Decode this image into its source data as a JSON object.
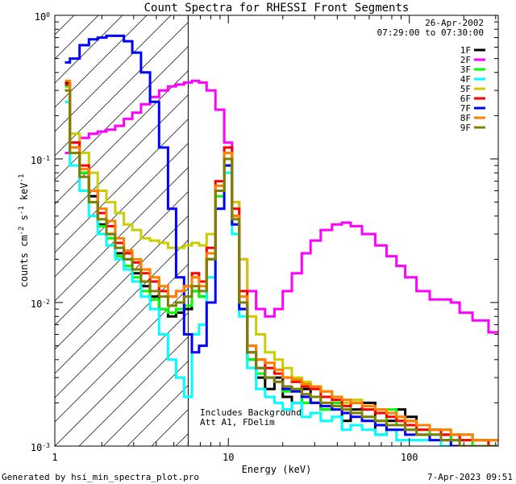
{
  "chart_data": {
    "type": "line",
    "title": "Count Spectra for RHESSI Front Segments",
    "xlabel": "Energy (keV)",
    "ylabel": "counts cm-2 s-1 keV-1",
    "x_scale": "log",
    "y_scale": "log",
    "xlim": [
      1.1,
      310
    ],
    "ylim": [
      0.001,
      1.0
    ],
    "x_ticks": [
      {
        "value": 1,
        "label": "1"
      },
      {
        "value": 10,
        "label": "10"
      },
      {
        "value": 100,
        "label": "100"
      }
    ],
    "y_ticks": [
      {
        "value": 1.0,
        "base": "10",
        "exp": "0"
      },
      {
        "value": 0.1,
        "base": "10",
        "exp": "-1"
      },
      {
        "value": 0.01,
        "base": "10",
        "exp": "-2"
      },
      {
        "value": 0.001,
        "base": "10",
        "exp": "-3"
      }
    ],
    "date": "26-Apr-2002",
    "time_range": "07:29:00 to 07:30:00",
    "annotations": [
      "Includes Background",
      "Att A1, FDelim"
    ],
    "hatched_region_max_kev": 6.0,
    "series": [
      {
        "name": "1F",
        "color": "#000000",
        "x": [
          1.25,
          1.42,
          1.6,
          1.8,
          2.0,
          2.25,
          2.5,
          2.8,
          3.1,
          3.5,
          3.9,
          4.4,
          4.9,
          5.4,
          6.0,
          6.6,
          7.2,
          8.0,
          9.0,
          10.0,
          11.0,
          12.0,
          13.5,
          15,
          17,
          19,
          21,
          24,
          27,
          30,
          35,
          40,
          45,
          50,
          60,
          70,
          80,
          90,
          100,
          120,
          140,
          160,
          180,
          200,
          250,
          300
        ],
        "y": [
          0.34,
          0.12,
          0.08,
          0.055,
          0.035,
          0.03,
          0.022,
          0.02,
          0.016,
          0.013,
          0.011,
          0.009,
          0.008,
          0.0085,
          0.009,
          0.012,
          0.011,
          0.02,
          0.06,
          0.1,
          0.04,
          0.01,
          0.004,
          0.003,
          0.0025,
          0.003,
          0.0022,
          0.002,
          0.0025,
          0.002,
          0.0018,
          0.002,
          0.0015,
          0.0018,
          0.002,
          0.0012,
          0.0015,
          0.0018,
          0.0016,
          0.0014,
          0.0012,
          0.0012,
          0.0011,
          0.0012,
          0.0011,
          0.001
        ]
      },
      {
        "name": "2F",
        "color": "#ff00ff",
        "x": [
          1.25,
          1.42,
          1.6,
          1.8,
          2.0,
          2.25,
          2.5,
          2.8,
          3.1,
          3.5,
          3.9,
          4.4,
          4.9,
          5.4,
          6.0,
          6.6,
          7.2,
          8.0,
          9.0,
          10.0,
          11.0,
          12.0,
          13.5,
          15,
          17,
          19,
          21,
          24,
          27,
          30,
          35,
          40,
          45,
          50,
          60,
          70,
          80,
          90,
          100,
          120,
          140,
          160,
          180,
          200,
          250,
          300
        ],
        "y": [
          0.11,
          0.13,
          0.14,
          0.15,
          0.155,
          0.16,
          0.17,
          0.19,
          0.21,
          0.24,
          0.27,
          0.3,
          0.32,
          0.33,
          0.34,
          0.35,
          0.34,
          0.3,
          0.22,
          0.13,
          0.05,
          0.02,
          0.012,
          0.009,
          0.008,
          0.009,
          0.012,
          0.016,
          0.022,
          0.027,
          0.032,
          0.035,
          0.036,
          0.034,
          0.03,
          0.025,
          0.021,
          0.018,
          0.015,
          0.012,
          0.0105,
          0.0105,
          0.01,
          0.0085,
          0.0075,
          0.0062
        ]
      },
      {
        "name": "3F",
        "color": "#00ff00",
        "x": [
          1.25,
          1.42,
          1.6,
          1.8,
          2.0,
          2.25,
          2.5,
          2.8,
          3.1,
          3.5,
          3.9,
          4.4,
          4.9,
          5.4,
          6.0,
          6.6,
          7.2,
          8.0,
          9.0,
          10.0,
          11.0,
          12.0,
          13.5,
          15,
          17,
          19,
          21,
          24,
          27,
          30,
          35,
          40,
          45,
          50,
          60,
          70,
          80,
          90,
          100,
          120,
          140,
          160,
          180,
          200,
          250,
          300
        ],
        "y": [
          0.32,
          0.12,
          0.08,
          0.05,
          0.034,
          0.028,
          0.021,
          0.018,
          0.015,
          0.012,
          0.0105,
          0.009,
          0.0085,
          0.009,
          0.0095,
          0.012,
          0.011,
          0.02,
          0.055,
          0.09,
          0.035,
          0.009,
          0.004,
          0.0032,
          0.003,
          0.0028,
          0.0024,
          0.0025,
          0.002,
          0.0022,
          0.0018,
          0.002,
          0.0017,
          0.002,
          0.0016,
          0.0015,
          0.0018,
          0.0014,
          0.0013,
          0.0013,
          0.0012,
          0.0011,
          0.0012,
          0.0011,
          0.001,
          0.001
        ]
      },
      {
        "name": "4F",
        "color": "#00ffff",
        "x": [
          1.25,
          1.42,
          1.6,
          1.8,
          2.0,
          2.25,
          2.5,
          2.8,
          3.1,
          3.5,
          3.9,
          4.4,
          4.9,
          5.4,
          6.0,
          6.6,
          7.2,
          8.0,
          9.0,
          10.0,
          11.0,
          12.0,
          13.5,
          15,
          17,
          19,
          21,
          24,
          27,
          30,
          35,
          40,
          45,
          50,
          60,
          70,
          80,
          90,
          100,
          120,
          140,
          160,
          180,
          200,
          250,
          300
        ],
        "y": [
          0.25,
          0.09,
          0.06,
          0.04,
          0.03,
          0.025,
          0.02,
          0.017,
          0.014,
          0.011,
          0.009,
          0.006,
          0.004,
          0.003,
          0.0022,
          0.006,
          0.007,
          0.015,
          0.045,
          0.08,
          0.03,
          0.008,
          0.0035,
          0.0025,
          0.0022,
          0.002,
          0.0018,
          0.002,
          0.0016,
          0.0017,
          0.0015,
          0.0016,
          0.0013,
          0.0014,
          0.0013,
          0.0012,
          0.0013,
          0.0011,
          0.0011,
          0.0011,
          0.0012,
          0.001,
          0.0011,
          0.001,
          0.001,
          0.001
        ]
      },
      {
        "name": "5F",
        "color": "#cccc00",
        "x": [
          1.25,
          1.42,
          1.6,
          1.8,
          2.0,
          2.25,
          2.5,
          2.8,
          3.1,
          3.5,
          3.9,
          4.4,
          4.9,
          5.4,
          6.0,
          6.6,
          7.2,
          8.0,
          9.0,
          10.0,
          11.0,
          12.0,
          13.5,
          15,
          17,
          19,
          21,
          24,
          27,
          30,
          35,
          40,
          45,
          50,
          60,
          70,
          80,
          90,
          100,
          120,
          140,
          160,
          180,
          200,
          250,
          300
        ],
        "y": [
          0.3,
          0.15,
          0.11,
          0.08,
          0.06,
          0.05,
          0.042,
          0.035,
          0.032,
          0.028,
          0.027,
          0.026,
          0.024,
          0.024,
          0.025,
          0.026,
          0.025,
          0.03,
          0.06,
          0.11,
          0.05,
          0.02,
          0.008,
          0.006,
          0.0045,
          0.004,
          0.0035,
          0.003,
          0.0028,
          0.0026,
          0.0024,
          0.0022,
          0.002,
          0.0021,
          0.0019,
          0.0018,
          0.0017,
          0.0016,
          0.0015,
          0.0014,
          0.0013,
          0.0013,
          0.0012,
          0.0012,
          0.0011,
          0.0011
        ]
      },
      {
        "name": "6F",
        "color": "#ff0000",
        "x": [
          1.25,
          1.42,
          1.6,
          1.8,
          2.0,
          2.25,
          2.5,
          2.8,
          3.1,
          3.5,
          3.9,
          4.4,
          4.9,
          5.4,
          6.0,
          6.6,
          7.2,
          8.0,
          9.0,
          10.0,
          11.0,
          12.0,
          13.5,
          15,
          17,
          19,
          21,
          24,
          27,
          30,
          35,
          40,
          45,
          50,
          60,
          70,
          80,
          90,
          100,
          120,
          140,
          160,
          180,
          200,
          250,
          300
        ],
        "y": [
          0.33,
          0.13,
          0.09,
          0.06,
          0.042,
          0.034,
          0.026,
          0.022,
          0.019,
          0.016,
          0.014,
          0.012,
          0.011,
          0.012,
          0.013,
          0.016,
          0.014,
          0.024,
          0.07,
          0.12,
          0.045,
          0.012,
          0.005,
          0.004,
          0.0035,
          0.0032,
          0.003,
          0.0028,
          0.0026,
          0.0025,
          0.0022,
          0.0021,
          0.0019,
          0.002,
          0.0018,
          0.0017,
          0.0016,
          0.0015,
          0.0014,
          0.0013,
          0.0013,
          0.0012,
          0.0012,
          0.0011,
          0.0011,
          0.001
        ]
      },
      {
        "name": "7F",
        "color": "#0000ff",
        "x": [
          1.25,
          1.42,
          1.6,
          1.8,
          2.0,
          2.25,
          2.5,
          2.8,
          3.1,
          3.5,
          3.9,
          4.4,
          4.9,
          5.4,
          6.0,
          6.6,
          7.2,
          8.0,
          9.0,
          10.0,
          11.0,
          12.0,
          13.5,
          15,
          17,
          19,
          21,
          24,
          27,
          30,
          35,
          40,
          45,
          50,
          60,
          70,
          80,
          90,
          100,
          120,
          140,
          160,
          180,
          200,
          250,
          300
        ],
        "y": [
          0.47,
          0.5,
          0.62,
          0.68,
          0.7,
          0.72,
          0.72,
          0.66,
          0.55,
          0.4,
          0.25,
          0.12,
          0.045,
          0.015,
          0.006,
          0.0045,
          0.005,
          0.01,
          0.045,
          0.09,
          0.035,
          0.009,
          0.0045,
          0.0035,
          0.003,
          0.0028,
          0.0025,
          0.0024,
          0.0022,
          0.002,
          0.0019,
          0.0018,
          0.0017,
          0.0016,
          0.0015,
          0.0014,
          0.0013,
          0.0013,
          0.0012,
          0.0012,
          0.0011,
          0.0011,
          0.001,
          0.001,
          0.001,
          0.001
        ]
      },
      {
        "name": "8F",
        "color": "#ff8000",
        "x": [
          1.25,
          1.42,
          1.6,
          1.8,
          2.0,
          2.25,
          2.5,
          2.8,
          3.1,
          3.5,
          3.9,
          4.4,
          4.9,
          5.4,
          6.0,
          6.6,
          7.2,
          8.0,
          9.0,
          10.0,
          11.0,
          12.0,
          13.5,
          15,
          17,
          19,
          21,
          24,
          27,
          30,
          35,
          40,
          45,
          50,
          60,
          70,
          80,
          90,
          100,
          120,
          140,
          160,
          180,
          200,
          250,
          300
        ],
        "y": [
          0.35,
          0.12,
          0.085,
          0.06,
          0.045,
          0.037,
          0.028,
          0.023,
          0.02,
          0.017,
          0.015,
          0.013,
          0.011,
          0.012,
          0.013,
          0.015,
          0.013,
          0.022,
          0.065,
          0.11,
          0.04,
          0.011,
          0.005,
          0.004,
          0.0038,
          0.0034,
          0.003,
          0.0029,
          0.0027,
          0.0026,
          0.0024,
          0.0022,
          0.0021,
          0.002,
          0.0019,
          0.0018,
          0.0017,
          0.0016,
          0.0015,
          0.0014,
          0.0013,
          0.0013,
          0.0012,
          0.0012,
          0.0011,
          0.0011
        ]
      },
      {
        "name": "9F",
        "color": "#808000",
        "x": [
          1.25,
          1.42,
          1.6,
          1.8,
          2.0,
          2.25,
          2.5,
          2.8,
          3.1,
          3.5,
          3.9,
          4.4,
          4.9,
          5.4,
          6.0,
          6.6,
          7.2,
          8.0,
          9.0,
          10.0,
          11.0,
          12.0,
          13.5,
          15,
          17,
          19,
          21,
          24,
          27,
          30,
          35,
          40,
          45,
          50,
          60,
          70,
          80,
          90,
          100,
          120,
          140,
          160,
          180,
          200,
          250,
          300
        ],
        "y": [
          0.3,
          0.11,
          0.075,
          0.05,
          0.038,
          0.03,
          0.024,
          0.02,
          0.017,
          0.014,
          0.012,
          0.011,
          0.0095,
          0.01,
          0.011,
          0.013,
          0.012,
          0.02,
          0.06,
          0.1,
          0.038,
          0.01,
          0.0045,
          0.0035,
          0.003,
          0.0028,
          0.0026,
          0.0025,
          0.0023,
          0.0022,
          0.002,
          0.0019,
          0.0018,
          0.0017,
          0.0016,
          0.0015,
          0.0014,
          0.0014,
          0.0013,
          0.0012,
          0.0012,
          0.0011,
          0.0011,
          0.001,
          0.001,
          0.001
        ]
      }
    ]
  },
  "footer": {
    "generator": "Generated by hsi_min_spectra_plot.pro",
    "timestamp": "7-Apr-2023 09:51"
  }
}
